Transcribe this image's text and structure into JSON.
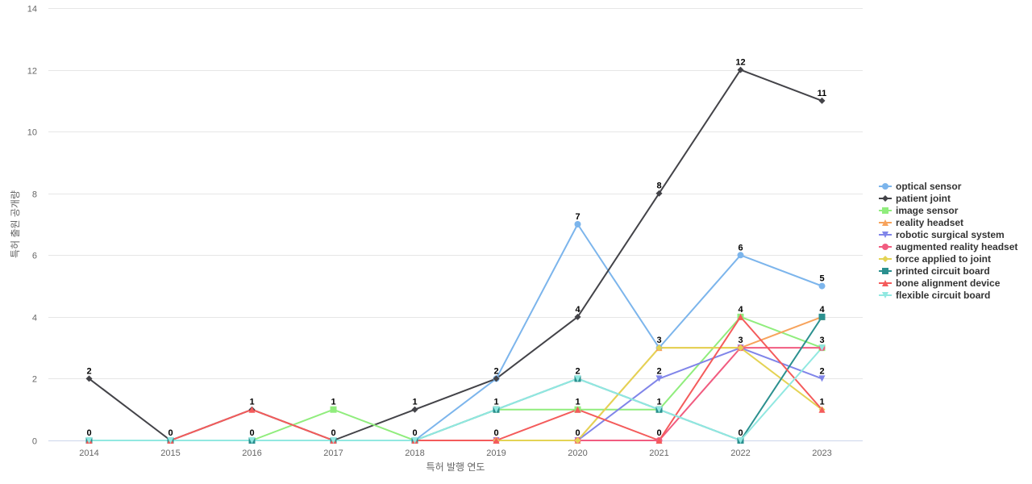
{
  "chart_data": {
    "type": "line",
    "title": "",
    "xlabel": "특허 발행 연도",
    "ylabel": "특허 출원 공개량",
    "ylim": [
      0,
      14
    ],
    "yticks": [
      0,
      2,
      4,
      6,
      8,
      10,
      12,
      14
    ],
    "grid": true,
    "legend_position": "right",
    "categories": [
      "2014",
      "2015",
      "2016",
      "2017",
      "2018",
      "2019",
      "2020",
      "2021",
      "2022",
      "2023"
    ],
    "series": [
      {
        "name": "optical sensor",
        "color": "#7cb5ec",
        "marker": "circle",
        "values": [
          0,
          0,
          0,
          0,
          0,
          2,
          7,
          3,
          6,
          5
        ]
      },
      {
        "name": "patient joint",
        "color": "#434348",
        "marker": "diamond",
        "values": [
          2,
          0,
          1,
          0,
          1,
          2,
          4,
          8,
          12,
          11
        ]
      },
      {
        "name": "image sensor",
        "color": "#90ed7d",
        "marker": "square",
        "values": [
          0,
          0,
          0,
          1,
          0,
          1,
          1,
          1,
          4,
          3
        ]
      },
      {
        "name": "reality headset",
        "color": "#f7a35c",
        "marker": "triangle",
        "values": [
          0,
          0,
          0,
          0,
          0,
          0,
          0,
          3,
          3,
          4
        ]
      },
      {
        "name": "robotic surgical system",
        "color": "#8085e9",
        "marker": "triangle-down",
        "values": [
          0,
          0,
          0,
          0,
          0,
          0,
          0,
          2,
          3,
          2
        ]
      },
      {
        "name": "augmented reality headset",
        "color": "#f15c80",
        "marker": "circle",
        "values": [
          0,
          0,
          0,
          0,
          0,
          0,
          0,
          0,
          3,
          3
        ]
      },
      {
        "name": "force applied to joint",
        "color": "#e4d354",
        "marker": "diamond",
        "values": [
          0,
          0,
          0,
          0,
          0,
          0,
          0,
          3,
          3,
          1
        ]
      },
      {
        "name": "printed circuit board",
        "color": "#2b908f",
        "marker": "square",
        "values": [
          0,
          0,
          0,
          0,
          0,
          1,
          2,
          1,
          0,
          4
        ]
      },
      {
        "name": "bone alignment device",
        "color": "#f45b5b",
        "marker": "triangle",
        "values": [
          0,
          0,
          1,
          0,
          0,
          0,
          1,
          0,
          4,
          1
        ]
      },
      {
        "name": "flexible circuit board",
        "color": "#91e8e1",
        "marker": "triangle-down",
        "values": [
          0,
          0,
          0,
          0,
          0,
          1,
          2,
          1,
          0,
          3
        ]
      }
    ],
    "data_labels": [
      {
        "series": "patient joint",
        "x": "2014",
        "text": "2"
      },
      {
        "series": "optical sensor",
        "x": "2014",
        "text": "0"
      },
      {
        "series": "patient joint",
        "x": "2015",
        "text": "0"
      },
      {
        "series": "bone alignment device",
        "x": "2016",
        "text": "1"
      },
      {
        "series": "optical sensor",
        "x": "2016",
        "text": "0"
      },
      {
        "series": "image sensor",
        "x": "2017",
        "text": "1"
      },
      {
        "series": "patient joint",
        "x": "2017",
        "text": "0"
      },
      {
        "series": "patient joint",
        "x": "2018",
        "text": "1"
      },
      {
        "series": "optical sensor",
        "x": "2018",
        "text": "0"
      },
      {
        "series": "optical sensor",
        "x": "2019",
        "text": "2"
      },
      {
        "series": "image sensor",
        "x": "2019",
        "text": "1"
      },
      {
        "series": "bone alignment device",
        "x": "2019",
        "text": "0"
      },
      {
        "series": "optical sensor",
        "x": "2020",
        "text": "7"
      },
      {
        "series": "patient joint",
        "x": "2020",
        "text": "4"
      },
      {
        "series": "printed circuit board",
        "x": "2020",
        "text": "2"
      },
      {
        "series": "image sensor",
        "x": "2020",
        "text": "1"
      },
      {
        "series": "reality headset",
        "x": "2020",
        "text": "0"
      },
      {
        "series": "patient joint",
        "x": "2021",
        "text": "8"
      },
      {
        "series": "optical sensor",
        "x": "2021",
        "text": "3"
      },
      {
        "series": "robotic surgical system",
        "x": "2021",
        "text": "2"
      },
      {
        "series": "image sensor",
        "x": "2021",
        "text": "1"
      },
      {
        "series": "bone alignment device",
        "x": "2021",
        "text": "0"
      },
      {
        "series": "patient joint",
        "x": "2022",
        "text": "12"
      },
      {
        "series": "optical sensor",
        "x": "2022",
        "text": "6"
      },
      {
        "series": "image sensor",
        "x": "2022",
        "text": "4"
      },
      {
        "series": "robotic surgical system",
        "x": "2022",
        "text": "3"
      },
      {
        "series": "printed circuit board",
        "x": "2022",
        "text": "0"
      },
      {
        "series": "patient joint",
        "x": "2023",
        "text": "11"
      },
      {
        "series": "optical sensor",
        "x": "2023",
        "text": "5"
      },
      {
        "series": "printed circuit board",
        "x": "2023",
        "text": "4"
      },
      {
        "series": "flexible circuit board",
        "x": "2023",
        "text": "3"
      },
      {
        "series": "robotic surgical system",
        "x": "2023",
        "text": "2"
      },
      {
        "series": "bone alignment device",
        "x": "2023",
        "text": "1"
      }
    ]
  }
}
